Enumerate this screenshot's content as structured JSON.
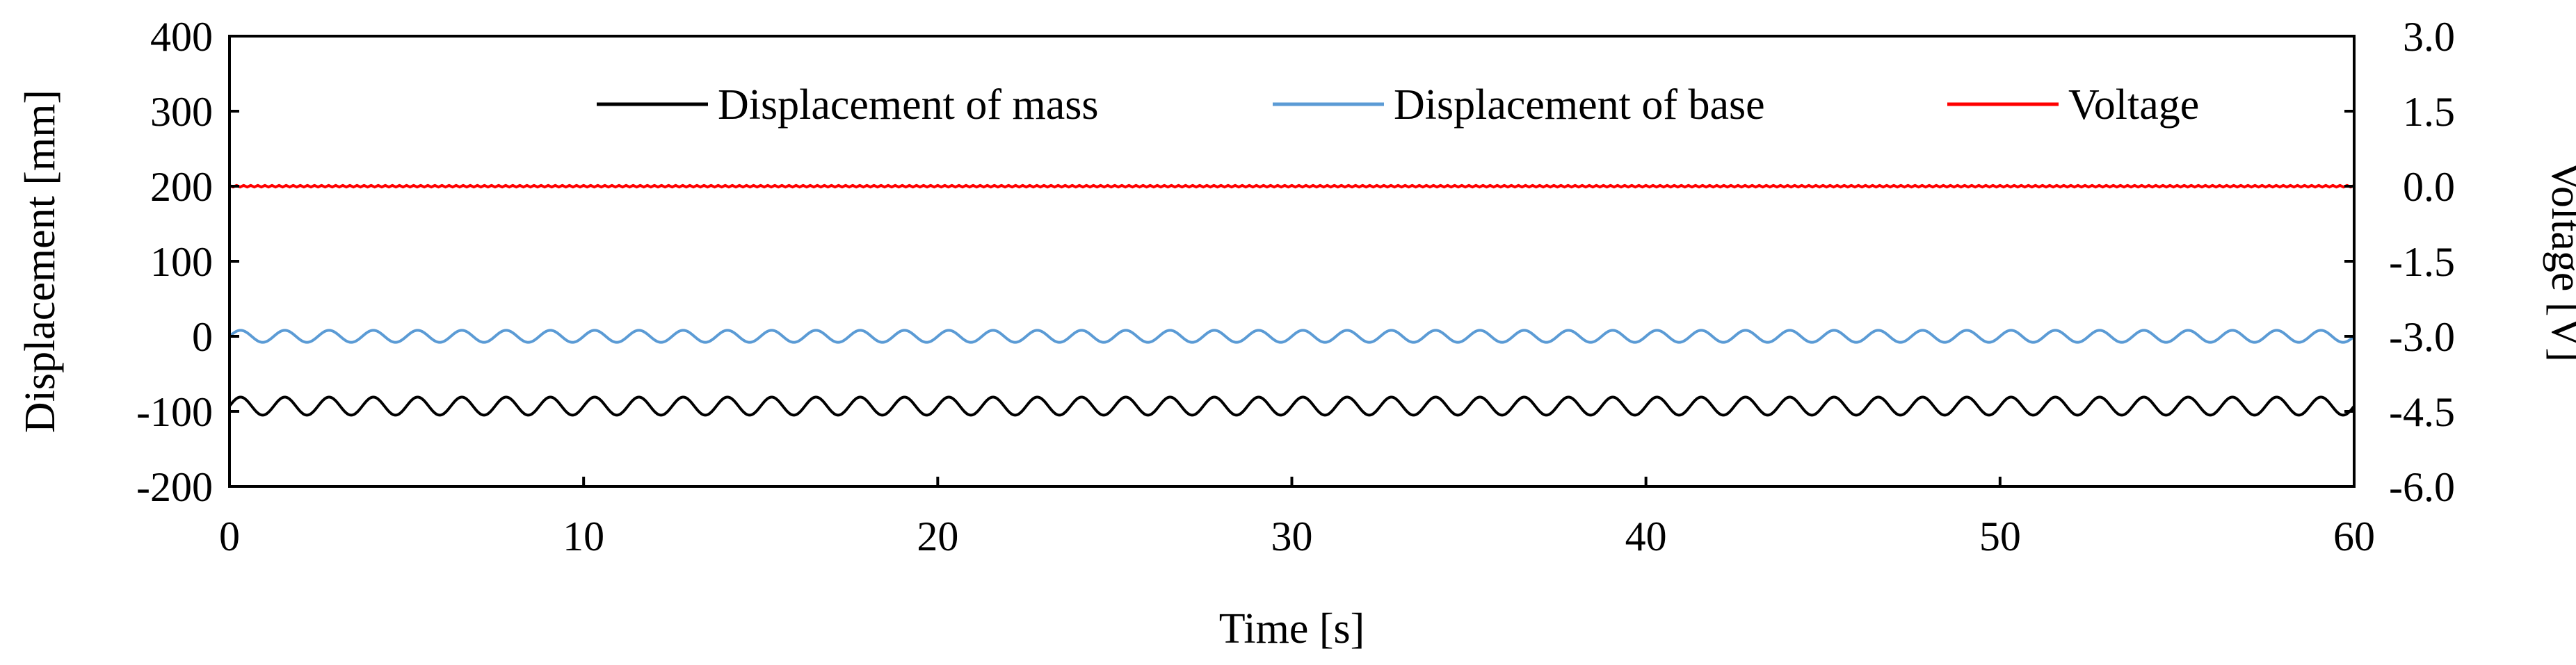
{
  "chart_data": {
    "type": "line",
    "title": "",
    "xlabel": "Time [s]",
    "ylabel_left": "Displacement [mm]",
    "ylabel_right": "Voltage [V]",
    "xlim": [
      0,
      60
    ],
    "ylim_left": [
      -200,
      400
    ],
    "ylim_right": [
      -6.0,
      3.0
    ],
    "x_ticks": [
      "0",
      "10",
      "20",
      "30",
      "40",
      "50",
      "60"
    ],
    "y_left_ticks": [
      "400",
      "300",
      "200",
      "100",
      "0",
      "-100",
      "-200"
    ],
    "y_right_ticks": [
      "3.0",
      "1.5",
      "0.0",
      "-1.5",
      "-3.0",
      "-4.5",
      "-6.0"
    ],
    "grid": false,
    "legend_position": "top",
    "series": [
      {
        "name": "Displacement of mass",
        "axis": "left",
        "color": "#000000",
        "kind": "sine",
        "center": -93,
        "amplitude": 12,
        "period_s": 1.25,
        "x_range": [
          0,
          60
        ]
      },
      {
        "name": "Displacement of base",
        "axis": "left",
        "color": "#5b9bd5",
        "kind": "sine",
        "center": 0,
        "amplitude": 8,
        "period_s": 1.25,
        "x_range": [
          0,
          60
        ]
      },
      {
        "name": "Voltage",
        "axis": "right",
        "color": "#ff0000",
        "kind": "constant",
        "value": 0.0,
        "x_range": [
          0,
          60
        ]
      }
    ]
  }
}
